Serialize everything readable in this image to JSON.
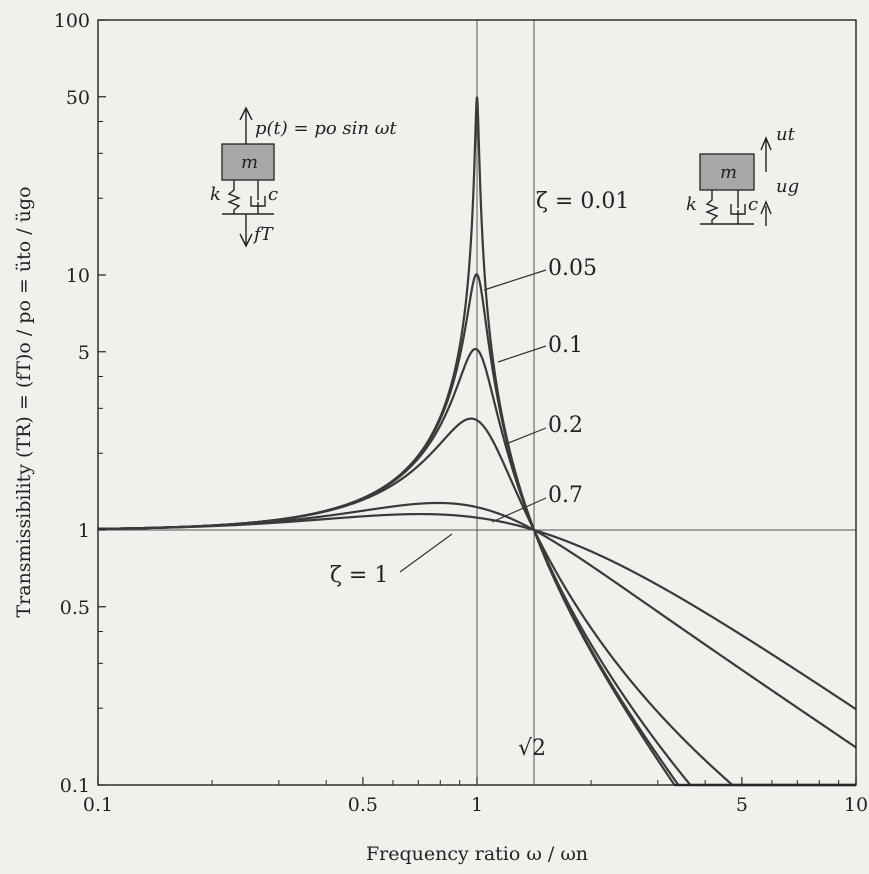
{
  "chart_data": {
    "type": "line",
    "title": "",
    "xlabel": "Frequency ratio ω / ωn",
    "ylabel": "Transmissibility (TR) = (fT)o / po = üto / ügo",
    "x_scale": "log",
    "y_scale": "log",
    "xlim": [
      0.1,
      10
    ],
    "ylim": [
      0.1,
      100
    ],
    "x_ticks": [
      0.1,
      0.5,
      1,
      5,
      10
    ],
    "x_tick_labels": [
      "0.1",
      "0.5",
      "1",
      "5",
      "10"
    ],
    "y_ticks": [
      0.1,
      0.5,
      1,
      5,
      10,
      50,
      100
    ],
    "y_tick_labels": [
      "0.1",
      "0.5",
      "1",
      "5",
      "10",
      "50",
      "100"
    ],
    "reference_lines": {
      "vertical_x": [
        1,
        1.414
      ],
      "horizontal_y": [
        1
      ],
      "sqrt2_label": "√2"
    },
    "series": [
      {
        "name": "ζ = 0.01",
        "zeta": 0.01
      },
      {
        "name": "0.05",
        "zeta": 0.05
      },
      {
        "name": "0.1",
        "zeta": 0.1
      },
      {
        "name": "0.2",
        "zeta": 0.2
      },
      {
        "name": "0.7",
        "zeta": 0.7
      },
      {
        "name": "ζ = 1",
        "zeta": 1
      }
    ],
    "annotations": {
      "force_eq": "p(t) = po sin ωt",
      "mass": "m",
      "spring": "k",
      "damper": "c",
      "force_out": "fT",
      "disp_total": "ut",
      "disp_ground": "ug"
    }
  }
}
